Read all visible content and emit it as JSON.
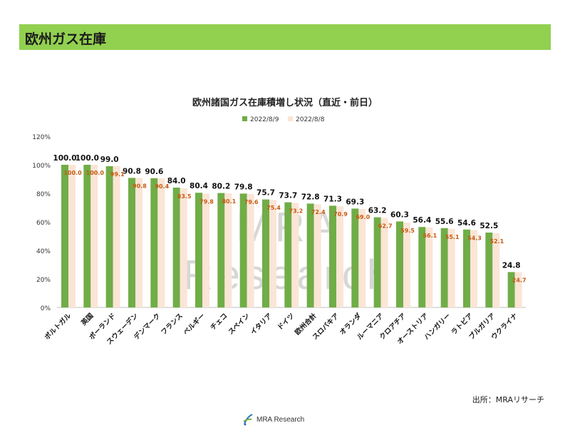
{
  "header": {
    "title": "欧州ガス在庫"
  },
  "source": "出所：MRAリサーチ",
  "logo": {
    "text": "MRA Research"
  },
  "watermark": "MRA Research",
  "colors": {
    "series1": "#70ad47",
    "series2": "#fbe5d6",
    "header": "#92d050",
    "label2": "#c55a11"
  },
  "chart_data": {
    "type": "bar",
    "title": "欧州諸国ガス在庫積増し状況（直近・前日）",
    "xlabel": "",
    "ylabel": "",
    "ylim": [
      0,
      120
    ],
    "yticks": [
      "0%",
      "20%",
      "40%",
      "60%",
      "80%",
      "100%",
      "120%"
    ],
    "legend_position": "top",
    "grid": false,
    "categories": [
      "ポルトガル",
      "英国",
      "ポーランド",
      "スウェーデン",
      "デンマーク",
      "フランス",
      "ベルギー",
      "チェコ",
      "スペイン",
      "イタリア",
      "ドイツ",
      "欧州合計",
      "スロバキア",
      "オランダ",
      "ルーマニア",
      "クロアチア",
      "オーストリア",
      "ハンガリー",
      "ラトビア",
      "ブルガリア",
      "ウクライナ"
    ],
    "series": [
      {
        "name": "2022/8/9",
        "values": [
          100.0,
          100.0,
          99.0,
          90.8,
          90.6,
          84.0,
          80.4,
          80.2,
          79.8,
          75.7,
          73.7,
          72.8,
          71.3,
          69.3,
          63.2,
          60.3,
          56.4,
          55.6,
          54.6,
          52.5,
          24.8
        ],
        "labels": [
          "100.0",
          "100.0",
          "99.0",
          "90.8",
          "90.6",
          "84.0",
          "80.4",
          "80.2",
          "79.8",
          "75.7",
          "73.7",
          "72.8",
          "71.3",
          "69.3",
          "63.2",
          "60.3",
          "56.4",
          "55.6",
          "54.6",
          "52.5",
          "24.8"
        ]
      },
      {
        "name": "2022/8/8",
        "values": [
          100.0,
          100.0,
          99.1,
          90.8,
          90.4,
          83.5,
          79.8,
          80.1,
          79.6,
          75.4,
          73.2,
          72.4,
          70.9,
          69.0,
          62.7,
          59.5,
          56.1,
          55.1,
          54.3,
          52.1,
          24.7
        ],
        "labels": [
          "100.0",
          "100.0",
          "99.1",
          "90.8",
          "90.4",
          "83.5",
          "79.8",
          "80.1",
          "79.6",
          "75.4",
          "73.2",
          "72.4",
          "70.9",
          "69.0",
          "62.7",
          "59.5",
          "56.1",
          "55.1",
          "54.3",
          "52.1",
          "24.7"
        ]
      }
    ]
  }
}
